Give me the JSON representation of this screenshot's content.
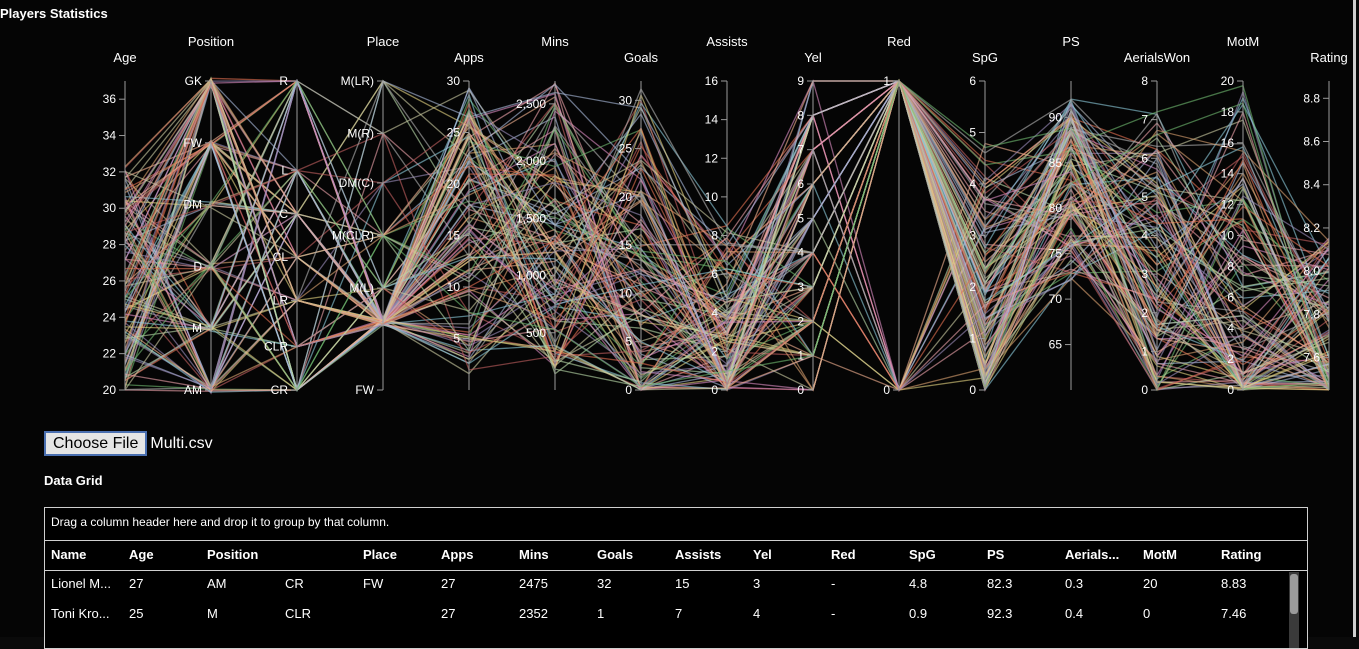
{
  "page_title": "Players Statistics",
  "file_input": {
    "button_label": "Choose File",
    "file_name": "Multi.csv"
  },
  "grid": {
    "heading": "Data Grid",
    "group_panel_text": "Drag a column header here and drop it to group by that column.",
    "columns": [
      "Name",
      "Age",
      "Position",
      "",
      "Place",
      "Apps",
      "Mins",
      "Goals",
      "Assists",
      "Yel",
      "Red",
      "SpG",
      "PS",
      "Aerials...",
      "MotM",
      "Rating"
    ],
    "rows": [
      [
        "Lionel M...",
        "27",
        "AM",
        "CR",
        "FW",
        "27",
        "2475",
        "32",
        "15",
        "3",
        "-",
        "4.8",
        "82.3",
        "0.3",
        "20",
        "8.83"
      ],
      [
        "Toni Kro...",
        "25",
        "M",
        "CLR",
        "",
        "27",
        "2352",
        "1",
        "7",
        "4",
        "-",
        "0.9",
        "92.3",
        "0.4",
        "0",
        "7.46"
      ]
    ]
  },
  "chart_data": {
    "type": "parallel_coordinates",
    "title": "",
    "axes": [
      {
        "name": "Age",
        "kind": "linear",
        "domain": [
          20,
          37
        ],
        "ticks": [
          "20",
          "22",
          "24",
          "26",
          "28",
          "30",
          "32",
          "34",
          "36"
        ]
      },
      {
        "name": "Position",
        "kind": "ordinal",
        "categories": [
          "GK",
          "FW",
          "DM",
          "D",
          "M",
          "AM"
        ]
      },
      {
        "name": "Place",
        "kind": "ordinal",
        "categories": [
          "R",
          "L",
          "C",
          "CL",
          "LR",
          "CLR",
          "CR"
        ]
      },
      {
        "name": "Apps",
        "kind": "ordinal",
        "categories": [
          "M(LR)",
          "M(R)",
          "DM(C)",
          "M(CLR)",
          "M(L)",
          "FW"
        ]
      },
      {
        "name": "Mins",
        "kind": "linear",
        "domain": [
          0,
          30
        ],
        "ticks": [
          "5",
          "10",
          "15",
          "20",
          "25",
          "30"
        ]
      },
      {
        "name": "Goals",
        "kind": "linear",
        "domain": [
          0,
          2700
        ],
        "ticks": [
          "500",
          "1,000",
          "1,500",
          "2,000",
          "2,500"
        ]
      },
      {
        "name": "Assists",
        "kind": "linear",
        "domain": [
          0,
          32
        ],
        "ticks": [
          "0",
          "5",
          "10",
          "15",
          "20",
          "25",
          "30"
        ]
      },
      {
        "name": "Yel",
        "kind": "linear",
        "domain": [
          0,
          16
        ],
        "ticks": [
          "0",
          "2",
          "4",
          "6",
          "8",
          "10",
          "12",
          "14",
          "16"
        ]
      },
      {
        "name": "Red",
        "kind": "linear",
        "domain": [
          0,
          9
        ],
        "ticks": [
          "0",
          "1",
          "2",
          "3",
          "4",
          "5",
          "6",
          "7",
          "8",
          "9"
        ]
      },
      {
        "name": "SpG",
        "kind": "linear",
        "domain": [
          0,
          1
        ],
        "ticks": [
          "0",
          "1"
        ]
      },
      {
        "name": "PS",
        "kind": "linear",
        "domain": [
          0,
          6
        ],
        "ticks": [
          "0",
          "1",
          "2",
          "3",
          "4",
          "5",
          "6"
        ]
      },
      {
        "name": "AerialsWon",
        "kind": "linear",
        "domain": [
          60,
          94
        ],
        "ticks": [
          "65",
          "70",
          "75",
          "80",
          "85",
          "90"
        ]
      },
      {
        "name": "MotM",
        "kind": "linear",
        "domain": [
          0,
          8
        ],
        "ticks": [
          "0",
          "1",
          "2",
          "3",
          "4",
          "5",
          "6",
          "7",
          "8"
        ]
      },
      {
        "name": "Rating",
        "kind": "linear",
        "domain": [
          0,
          20
        ],
        "ticks": [
          "0",
          "2",
          "4",
          "6",
          "8",
          "10",
          "12",
          "14",
          "16",
          "18",
          "20"
        ]
      },
      {
        "name": "",
        "kind": "linear",
        "domain": [
          7.45,
          8.88
        ],
        "ticks": [
          "7.6",
          "7.8",
          "8.0",
          "8.2",
          "8.4",
          "8.6",
          "8.8"
        ]
      }
    ],
    "series_note": "",
    "palette": [
      "#e8a0a8",
      "#b8d8a8",
      "#a8b8d8",
      "#d8a070",
      "#9a8ab8",
      "#e07050",
      "#70b870",
      "#c8c8a0",
      "#d88ac0",
      "#8ac8d8",
      "#f0b090",
      "#b0b0b0",
      "#c06060",
      "#e0d080"
    ],
    "sample_records": [
      [
        "27",
        "AM",
        "CR",
        "FW",
        "27",
        "2475",
        "32",
        "15",
        "3",
        "-",
        "4.8",
        "82.3",
        "0.3",
        "20",
        "8.83"
      ],
      [
        "25",
        "M",
        "CLR",
        "",
        "27",
        "2352",
        "1",
        "7",
        "4",
        "-",
        "0.9",
        "92.3",
        "0.4",
        "0",
        "7.46"
      ]
    ]
  }
}
